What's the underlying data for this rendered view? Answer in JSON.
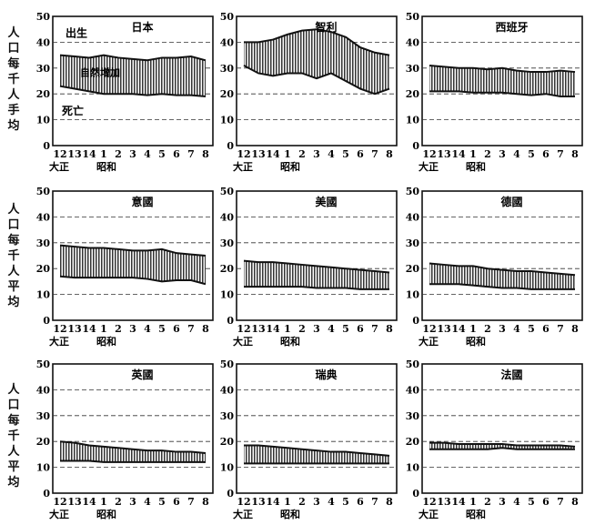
{
  "figure": {
    "ylabel": "人口每千人平均",
    "row_labels": [
      "人口每千人手均",
      "人口每千人平均",
      "人口每千人平均"
    ]
  },
  "chart_data": [
    {
      "type": "area",
      "title": "日本",
      "x_ticks": [
        "12",
        "13",
        "14",
        "1",
        "2",
        "3",
        "4",
        "5",
        "6",
        "7",
        "8"
      ],
      "era_labels": [
        "大正",
        "昭和"
      ],
      "ylim": [
        0,
        50
      ],
      "y_ticks": [
        0,
        10,
        20,
        30,
        40,
        50
      ],
      "grid": true,
      "series": [
        {
          "name": "出生",
          "values": [
            35,
            34.5,
            34,
            35,
            34,
            33.5,
            33,
            34,
            34,
            34.5,
            33
          ]
        },
        {
          "name": "死亡",
          "values": [
            23,
            22,
            21,
            20,
            20,
            20,
            19.5,
            20,
            19.5,
            19.5,
            19
          ]
        }
      ],
      "annotations": [
        "出生",
        "自然增加",
        "死亡"
      ]
    },
    {
      "type": "area",
      "title": "智利",
      "x_ticks": [
        "12",
        "13",
        "14",
        "1",
        "2",
        "3",
        "4",
        "5",
        "6",
        "7",
        "8"
      ],
      "era_labels": [
        "大正",
        "昭和"
      ],
      "ylim": [
        0,
        50
      ],
      "y_ticks": [
        0,
        10,
        20,
        30,
        40,
        50
      ],
      "grid": true,
      "series": [
        {
          "name": "",
          "values": [
            40,
            40,
            41,
            43,
            44.5,
            45,
            44,
            42,
            38,
            36,
            35
          ]
        },
        {
          "name": "",
          "values": [
            31,
            28,
            27,
            28,
            28,
            26,
            28,
            25,
            22,
            20,
            22
          ]
        }
      ]
    },
    {
      "type": "area",
      "title": "西班牙",
      "x_ticks": [
        "12",
        "13",
        "14",
        "1",
        "2",
        "3",
        "4",
        "5",
        "6",
        "7",
        "8"
      ],
      "era_labels": [
        "大正",
        "昭和"
      ],
      "ylim": [
        0,
        50
      ],
      "y_ticks": [
        0,
        10,
        20,
        30,
        40,
        50
      ],
      "grid": true,
      "series": [
        {
          "name": "",
          "values": [
            31,
            30.5,
            30,
            30,
            29.5,
            30,
            29,
            28.5,
            28.5,
            29,
            28.5
          ]
        },
        {
          "name": "",
          "values": [
            21,
            21,
            21,
            20.5,
            20.5,
            20.5,
            20,
            19.5,
            20,
            19,
            19
          ]
        }
      ]
    },
    {
      "type": "area",
      "title": "意國",
      "x_ticks": [
        "12",
        "13",
        "14",
        "1",
        "2",
        "3",
        "4",
        "5",
        "6",
        "7",
        "8"
      ],
      "era_labels": [
        "大正",
        "昭和"
      ],
      "ylim": [
        0,
        50
      ],
      "y_ticks": [
        0,
        10,
        20,
        30,
        40,
        50
      ],
      "grid": true,
      "series": [
        {
          "name": "",
          "values": [
            29,
            28.5,
            28,
            28,
            27.5,
            27,
            27,
            27.5,
            26,
            25.5,
            25
          ]
        },
        {
          "name": "",
          "values": [
            17,
            16.5,
            16.5,
            16.5,
            16.5,
            16.5,
            16,
            15,
            15.5,
            15.5,
            14
          ]
        }
      ]
    },
    {
      "type": "area",
      "title": "美國",
      "x_ticks": [
        "12",
        "13",
        "14",
        "1",
        "2",
        "3",
        "4",
        "5",
        "6",
        "7",
        "8"
      ],
      "era_labels": [
        "大正",
        "昭和"
      ],
      "ylim": [
        0,
        50
      ],
      "y_ticks": [
        0,
        10,
        20,
        30,
        40,
        50
      ],
      "grid": true,
      "series": [
        {
          "name": "",
          "values": [
            23,
            22.5,
            22.5,
            22,
            21.5,
            21,
            20.5,
            20,
            19.5,
            19,
            18.5
          ]
        },
        {
          "name": "",
          "values": [
            13,
            13,
            13,
            13,
            13,
            12.5,
            12.5,
            12.5,
            12,
            12,
            12
          ]
        }
      ]
    },
    {
      "type": "area",
      "title": "德國",
      "x_ticks": [
        "12",
        "13",
        "14",
        "1",
        "2",
        "3",
        "4",
        "5",
        "6",
        "7",
        "8"
      ],
      "era_labels": [
        "大正",
        "昭和"
      ],
      "ylim": [
        0,
        50
      ],
      "y_ticks": [
        0,
        10,
        20,
        30,
        40,
        50
      ],
      "grid": true,
      "series": [
        {
          "name": "",
          "values": [
            22,
            21.5,
            21,
            21,
            20,
            19.5,
            19,
            19,
            18.5,
            18,
            17.5
          ]
        },
        {
          "name": "",
          "values": [
            14,
            14,
            14,
            13.5,
            13,
            12.5,
            12.5,
            12,
            12,
            12,
            12
          ]
        }
      ]
    },
    {
      "type": "area",
      "title": "英國",
      "x_ticks": [
        "12",
        "13",
        "14",
        "1",
        "2",
        "3",
        "4",
        "5",
        "6",
        "7",
        "8"
      ],
      "era_labels": [
        "大正",
        "昭和"
      ],
      "ylim": [
        0,
        50
      ],
      "y_ticks": [
        0,
        10,
        20,
        30,
        40,
        50
      ],
      "grid": true,
      "series": [
        {
          "name": "",
          "values": [
            20,
            19.5,
            18.5,
            18,
            17.5,
            17,
            16.5,
            16.5,
            16,
            16,
            15.5
          ]
        },
        {
          "name": "",
          "values": [
            12.5,
            12.5,
            12.5,
            12,
            12,
            12,
            12,
            12,
            12,
            12,
            12
          ]
        }
      ]
    },
    {
      "type": "area",
      "title": "瑞典",
      "x_ticks": [
        "12",
        "13",
        "14",
        "1",
        "2",
        "3",
        "4",
        "5",
        "6",
        "7",
        "8"
      ],
      "era_labels": [
        "大正",
        "昭和"
      ],
      "ylim": [
        0,
        50
      ],
      "y_ticks": [
        0,
        10,
        20,
        30,
        40,
        50
      ],
      "grid": true,
      "series": [
        {
          "name": "",
          "values": [
            18.5,
            18.5,
            18,
            17.5,
            17,
            16.5,
            16,
            16,
            15.5,
            15,
            14.5
          ]
        },
        {
          "name": "",
          "values": [
            11.5,
            11.5,
            11.5,
            11.5,
            11.5,
            11.5,
            11.5,
            11.5,
            11.5,
            11.5,
            11.5
          ]
        }
      ]
    },
    {
      "type": "area",
      "title": "法國",
      "x_ticks": [
        "12",
        "13",
        "14",
        "1",
        "2",
        "3",
        "4",
        "5",
        "6",
        "7",
        "8"
      ],
      "era_labels": [
        "大正",
        "昭和"
      ],
      "ylim": [
        0,
        50
      ],
      "y_ticks": [
        0,
        10,
        20,
        30,
        40,
        50
      ],
      "grid": true,
      "series": [
        {
          "name": "",
          "values": [
            19.5,
            19.5,
            19,
            19,
            19,
            19,
            18.5,
            18.5,
            18.5,
            18.5,
            18
          ]
        },
        {
          "name": "",
          "values": [
            17,
            17,
            17,
            17,
            17,
            17.5,
            17,
            17,
            17,
            17,
            17
          ]
        }
      ]
    }
  ]
}
